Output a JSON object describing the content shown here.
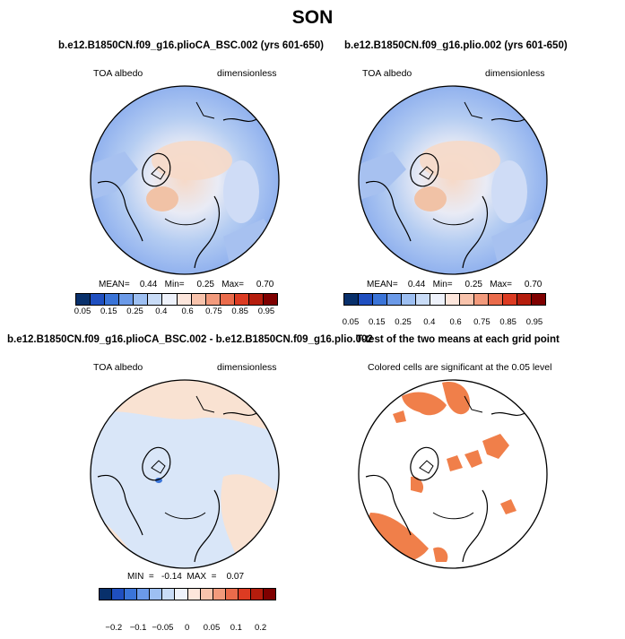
{
  "season": "SON",
  "panels": {
    "top_left": {
      "title": "b.e12.B1850CN.f09_g16.plioCA_BSC.002 (yrs 601-650)",
      "left_label": "TOA albedo",
      "right_label": "dimensionless",
      "stats": "MEAN=    0.44   Min=     0.25   Max=     0.70"
    },
    "top_right": {
      "title": "b.e12.B1850CN.f09_g16.plio.002 (yrs 601-650)",
      "left_label": "TOA albedo",
      "right_label": "dimensionless",
      "stats": "MEAN=    0.44   Min=     0.25   Max=     0.70"
    },
    "bottom_left": {
      "title": "b.e12.B1850CN.f09_g16.plioCA_BSC.002 - b.e12.B1850CN.f09_g16.plio.002",
      "left_label": "TOA albedo",
      "right_label": "dimensionless",
      "stats": "MIN  =   -0.14  MAX  =    0.07"
    },
    "bottom_right": {
      "title": "T-test of the two means at each grid point",
      "subtitle": "Colored cells are significant at the 0.05 level"
    }
  },
  "colorbar_abs": {
    "colors": [
      "#08306b",
      "#1f4fc0",
      "#3a74d8",
      "#6b9ae8",
      "#9dbff2",
      "#c9dcf7",
      "#eef2fb",
      "#fde6dc",
      "#f8c3ac",
      "#f29a7c",
      "#ea6b4b",
      "#dc3b22",
      "#b51d0d",
      "#7f0000"
    ],
    "tick_labels": [
      "0.05",
      "0.15",
      "0.25",
      "0.4",
      "0.6",
      "0.75",
      "0.85",
      "0.95"
    ]
  },
  "colorbar_diff": {
    "colors": [
      "#08306b",
      "#1f4fc0",
      "#3a74d8",
      "#6b9ae8",
      "#9dbff2",
      "#c9dcf7",
      "#eef2fb",
      "#fde6dc",
      "#f8c3ac",
      "#f29a7c",
      "#ea6b4b",
      "#dc3b22",
      "#b51d0d",
      "#7f0000"
    ],
    "tick_labels": [
      "−0.2",
      "−0.1",
      "−0.05",
      "0",
      "0.05",
      "0.1",
      "0.2"
    ]
  },
  "map_colors": {
    "ocean_low": "#8fb0ee",
    "ocean_mid": "#b5cdf2",
    "land_light": "#dde7f8",
    "warm": "#f6d9c8",
    "warm_strong": "#f1c2a6",
    "diff_neutral": "#d9e6f8",
    "diff_pos": "#f9e2d2",
    "sig": "#f07f4a"
  }
}
